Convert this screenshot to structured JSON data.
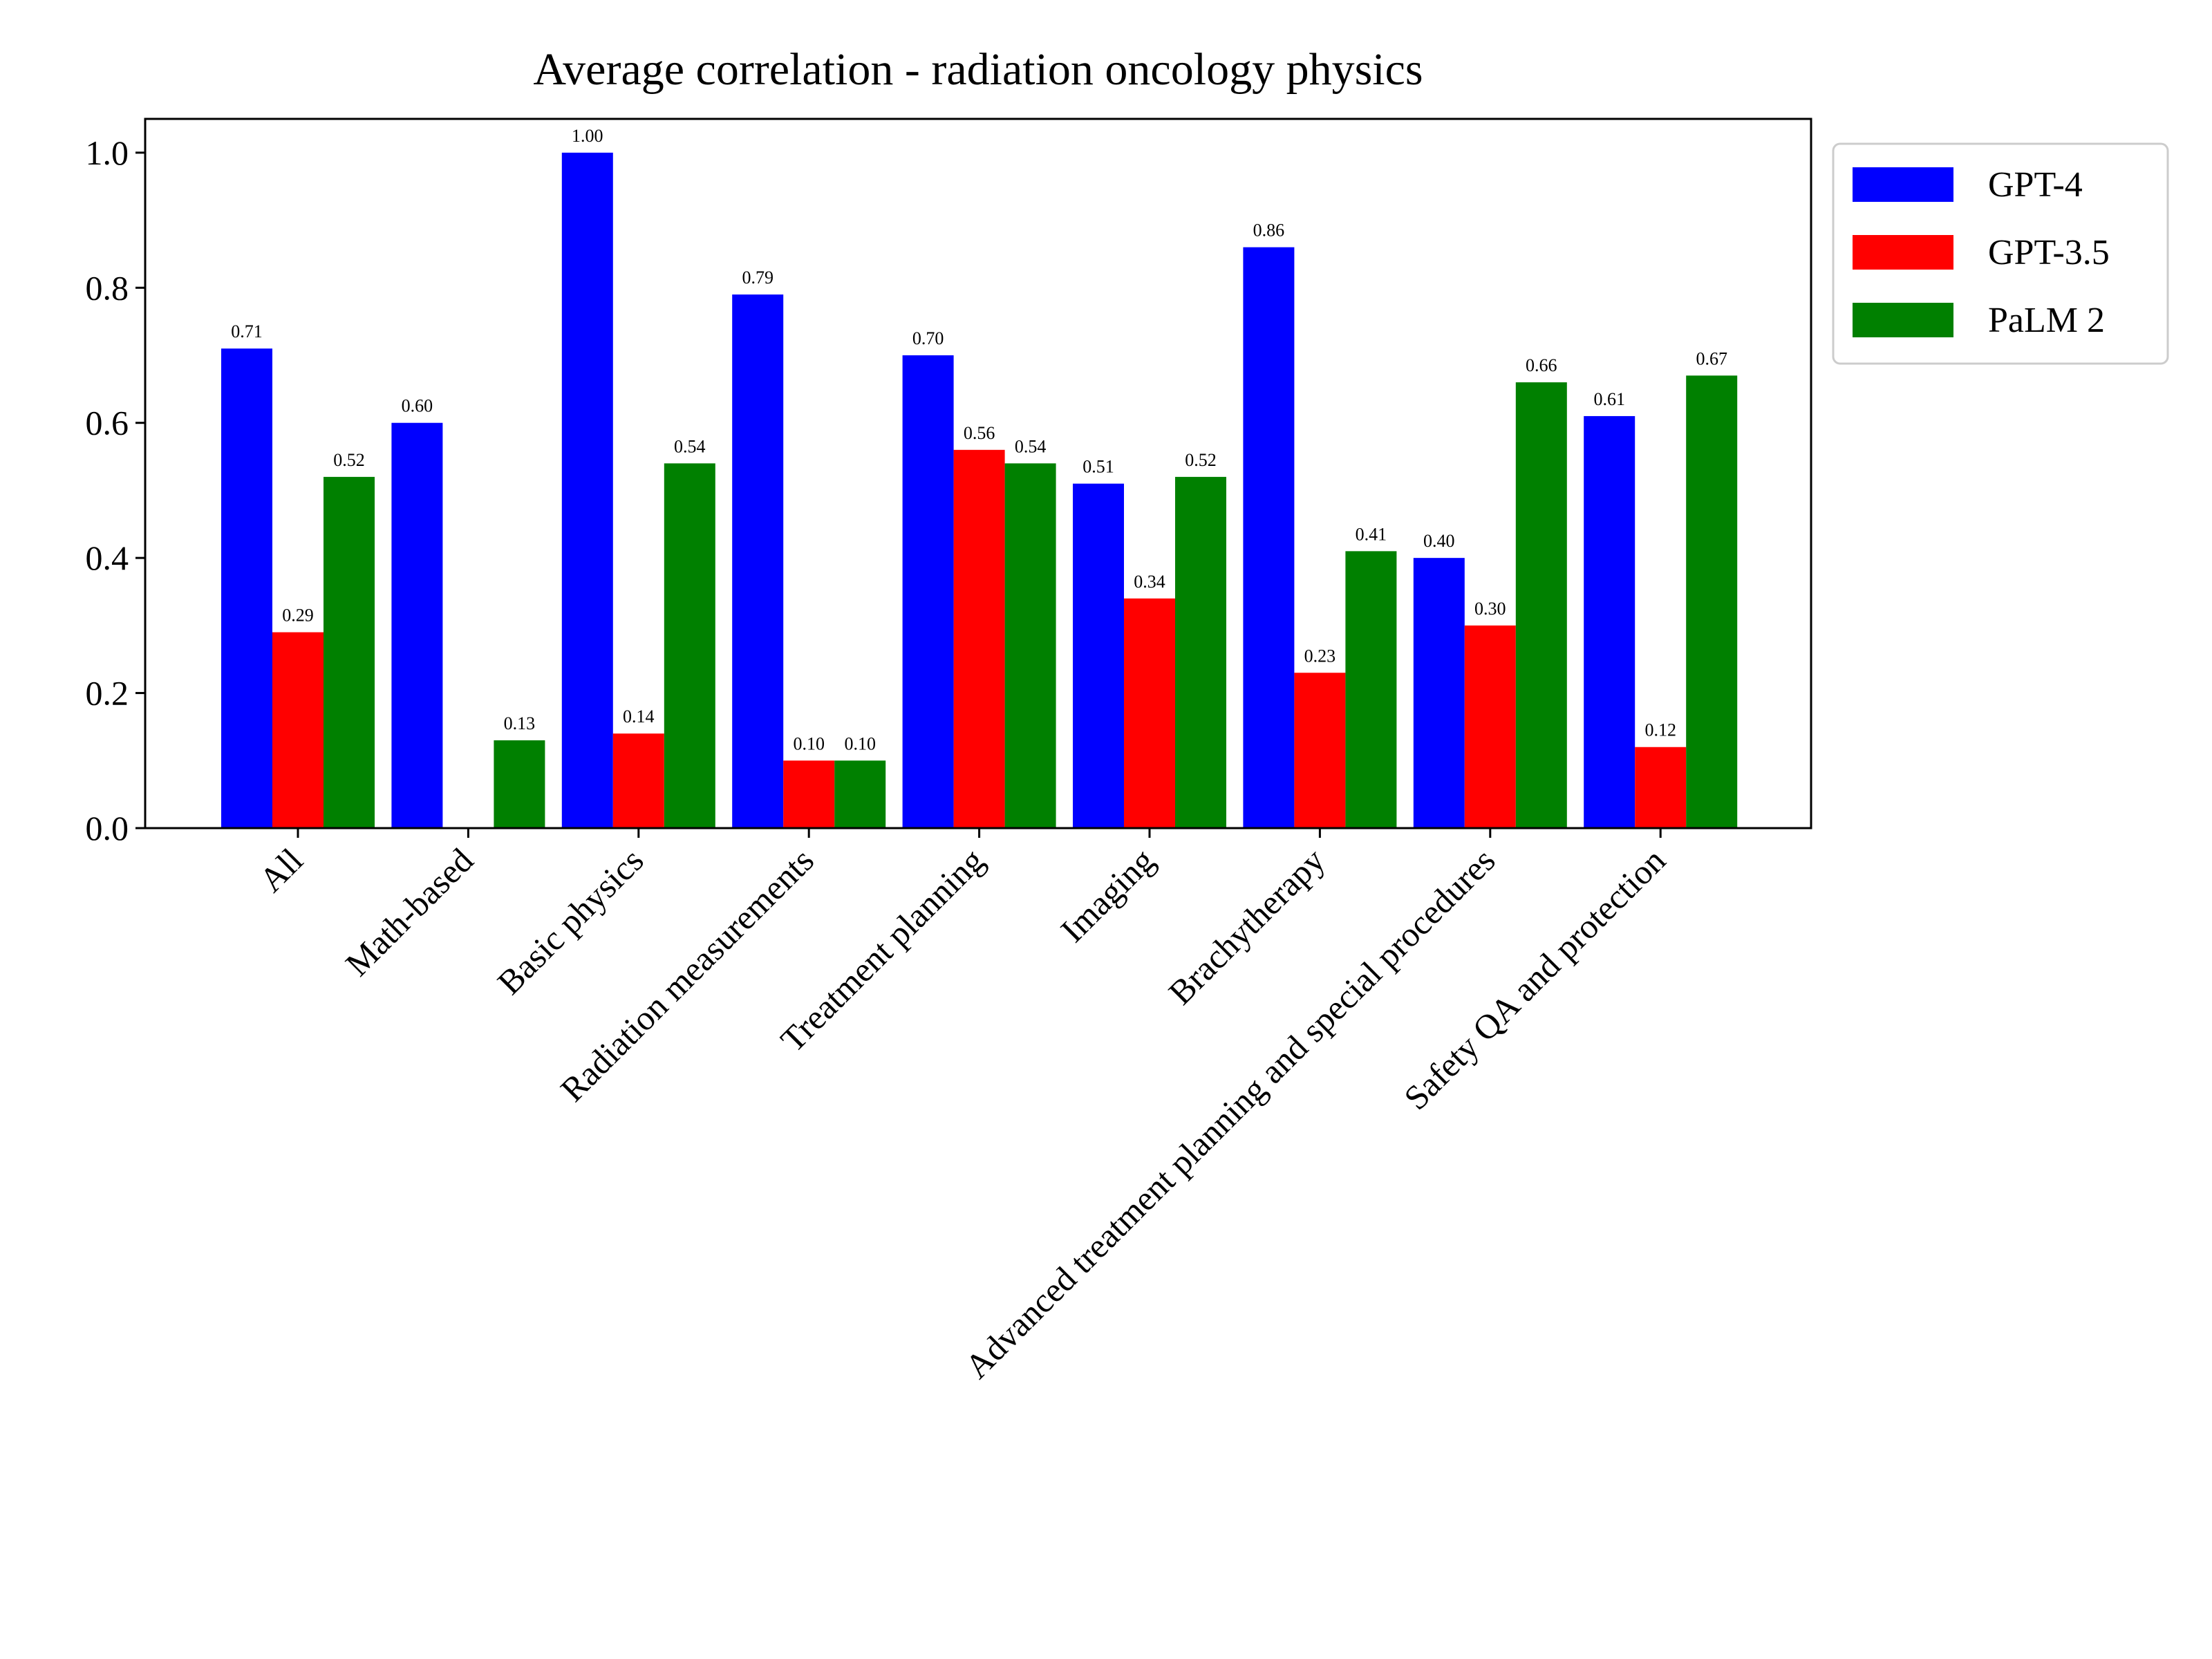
{
  "chart_data": {
    "type": "bar",
    "title": "Average correlation - radiation oncology physics",
    "xlabel": "",
    "ylabel": "",
    "ylim": [
      0,
      1.05
    ],
    "yticks": [
      "0.0",
      "0.2",
      "0.4",
      "0.6",
      "0.8",
      "1.0"
    ],
    "ytick_values": [
      0,
      0.2,
      0.4,
      0.6,
      0.8,
      1.0
    ],
    "grid": false,
    "legend_position": "outside-top-right",
    "categories": [
      "All",
      "Math-based",
      "Basic physics",
      "Radiation measurements",
      "Treatment planning",
      "Imaging",
      "Brachytherapy",
      "Advanced treatment planning and special procedures",
      "Safety QA and protection"
    ],
    "series": [
      {
        "name": "GPT-4",
        "color": "#0000ff",
        "values": [
          0.71,
          0.6,
          1.0,
          0.79,
          0.7,
          0.51,
          0.86,
          0.4,
          0.61
        ],
        "labels": [
          "0.71",
          "0.60",
          "1.00",
          "0.79",
          "0.70",
          "0.51",
          "0.86",
          "0.40",
          "0.61"
        ]
      },
      {
        "name": "GPT-3.5",
        "color": "#ff0000",
        "values": [
          0.29,
          null,
          0.14,
          0.1,
          0.56,
          0.34,
          0.23,
          0.3,
          0.12
        ],
        "labels": [
          "0.29",
          "",
          "0.14",
          "0.10",
          "0.56",
          "0.34",
          "0.23",
          "0.30",
          "0.12"
        ]
      },
      {
        "name": "PaLM 2",
        "color": "#008000",
        "values": [
          0.52,
          0.13,
          0.54,
          0.1,
          0.54,
          0.52,
          0.41,
          0.66,
          0.67
        ],
        "labels": [
          "0.52",
          "0.13",
          "0.54",
          "0.10",
          "0.54",
          "0.52",
          "0.41",
          "0.66",
          "0.67"
        ]
      }
    ]
  }
}
